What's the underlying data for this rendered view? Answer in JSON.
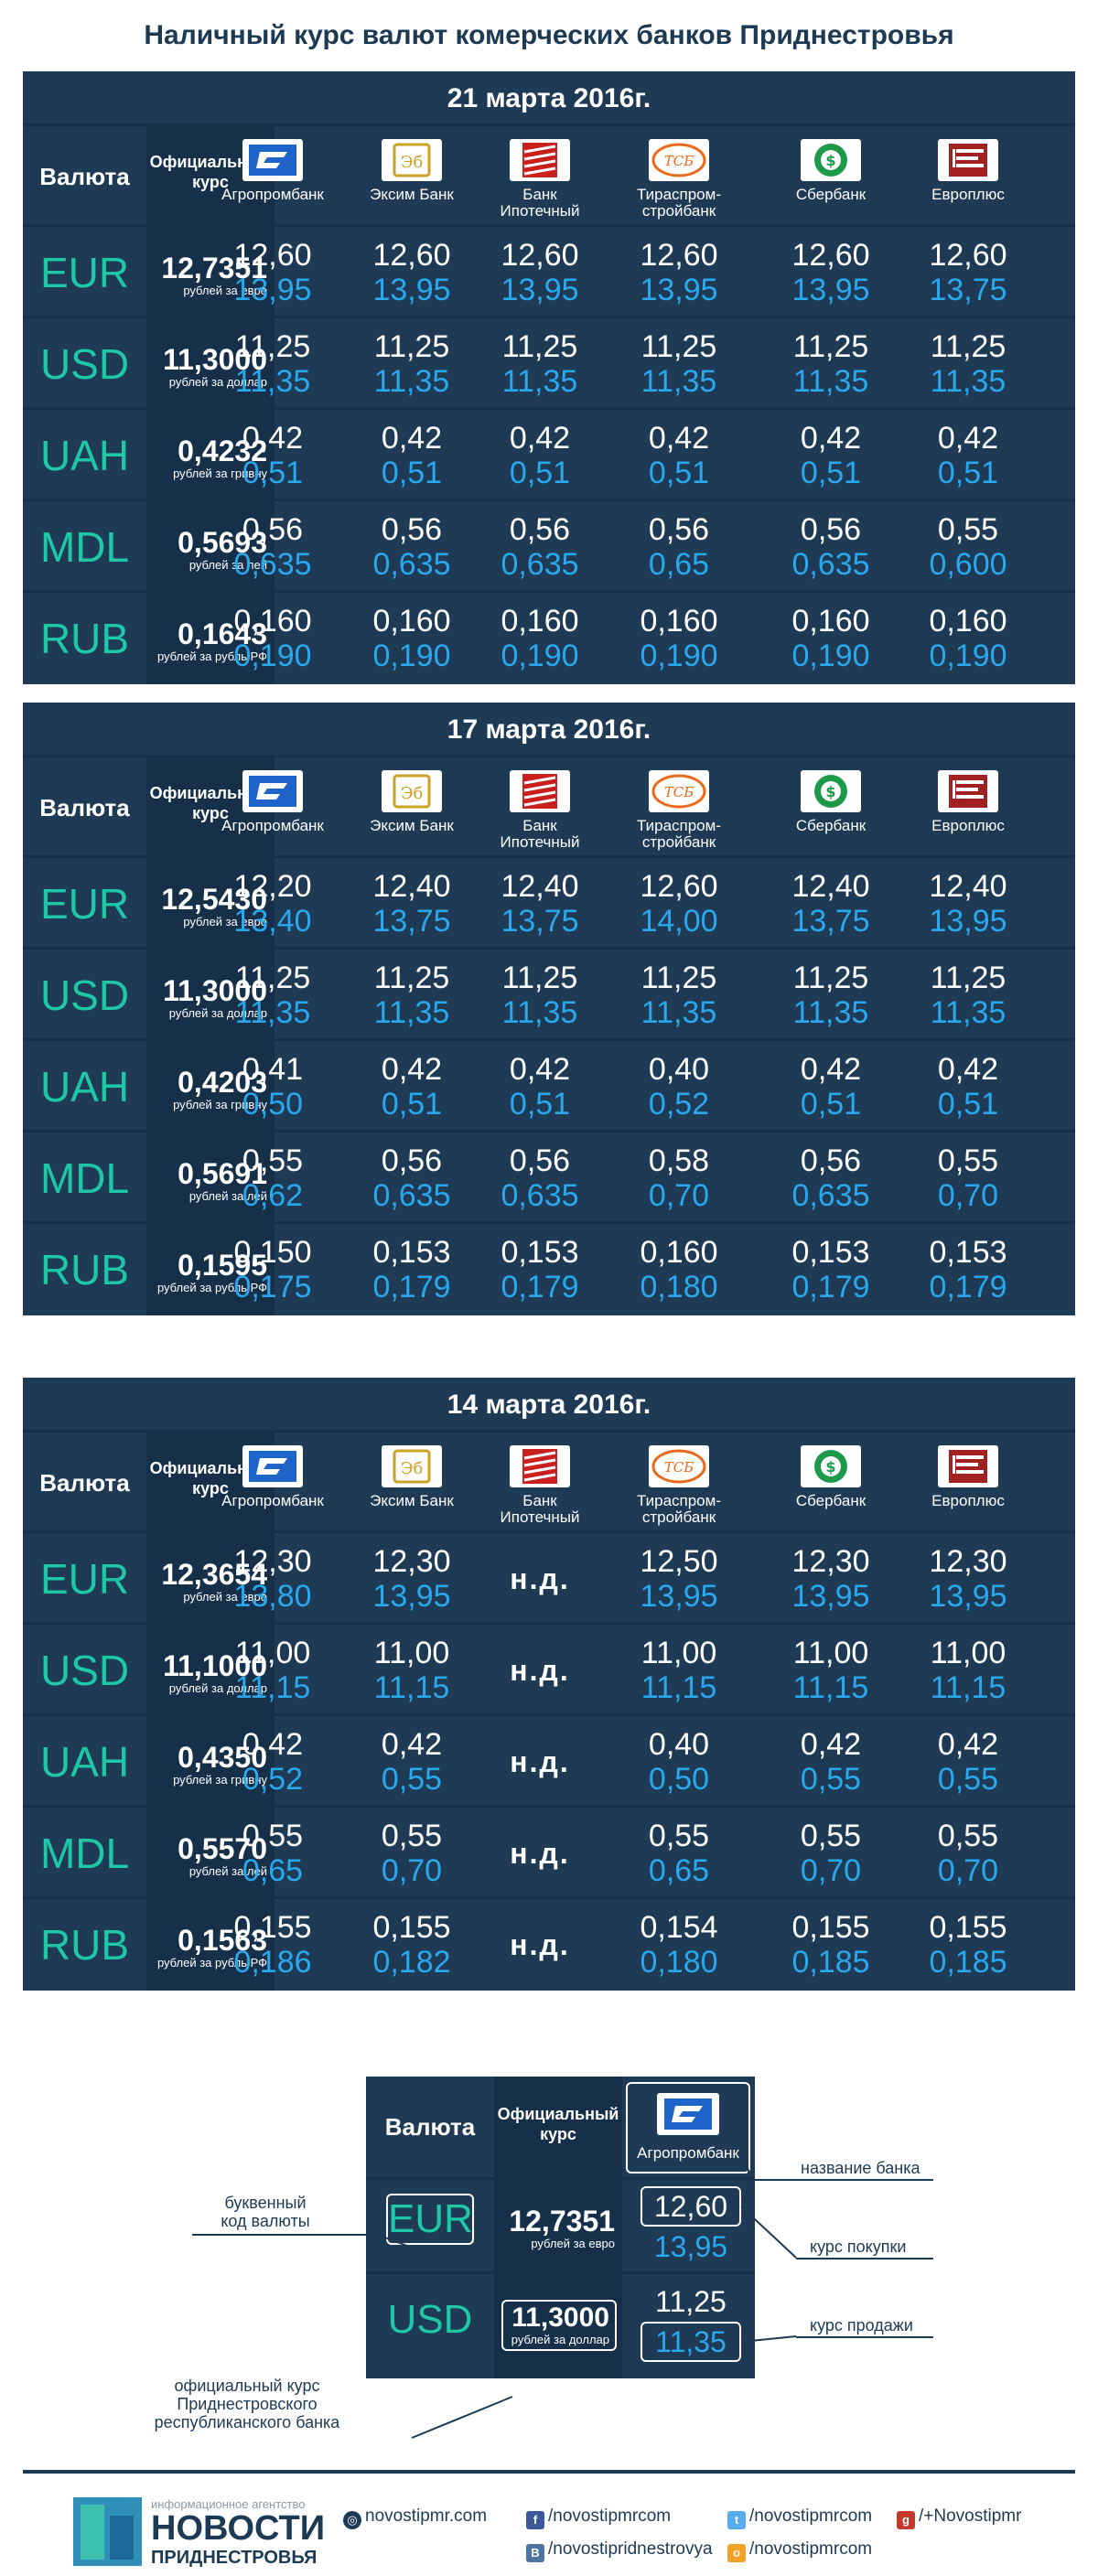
{
  "title": "Наличный курс валют комерческих банков Приднестровья",
  "header": {
    "valuta": "Валюта",
    "official_line1": "Официальный",
    "official_line2": "курс",
    "banks": [
      {
        "name1": "Агропромбанк",
        "name2": "",
        "logo": "agroprombank-logo"
      },
      {
        "name1": "Эксим Банк",
        "name2": "",
        "logo": "eximbank-logo"
      },
      {
        "name1": "Банк",
        "name2": "Ипотечный",
        "logo": "ipotechny-logo"
      },
      {
        "name1": "Тираспром-",
        "name2": "стройбанк",
        "logo": "tirasprom-logo"
      },
      {
        "name1": "Сбербанк",
        "name2": "",
        "logo": "sberbank-logo"
      },
      {
        "name1": "Европлюс",
        "name2": "",
        "logo": "evroplus-logo"
      }
    ]
  },
  "units": {
    "EUR": "рублей за евро",
    "USD": "рублей за доллар",
    "UAH": "рублей за гривну",
    "MDL": "рублей за лей",
    "RUB": "рублей за рубль РФ"
  },
  "blocks": [
    {
      "date": "21 марта 2016г.",
      "rows": [
        {
          "code": "EUR",
          "official": "12,7351",
          "buy": [
            "12,60",
            "12,60",
            "12,60",
            "12,60",
            "12,60",
            "12,60"
          ],
          "sell": [
            "13,95",
            "13,95",
            "13,95",
            "13,95",
            "13,95",
            "13,75"
          ]
        },
        {
          "code": "USD",
          "official": "11,3000",
          "buy": [
            "11,25",
            "11,25",
            "11,25",
            "11,25",
            "11,25",
            "11,25"
          ],
          "sell": [
            "11,35",
            "11,35",
            "11,35",
            "11,35",
            "11,35",
            "11,35"
          ]
        },
        {
          "code": "UAH",
          "official": "0,4232",
          "buy": [
            "0,42",
            "0,42",
            "0,42",
            "0,42",
            "0,42",
            "0,42"
          ],
          "sell": [
            "0,51",
            "0,51",
            "0,51",
            "0,51",
            "0,51",
            "0,51"
          ]
        },
        {
          "code": "MDL",
          "official": "0,5693",
          "buy": [
            "0,56",
            "0,56",
            "0,56",
            "0,56",
            "0,56",
            "0,55"
          ],
          "sell": [
            "0,635",
            "0,635",
            "0,635",
            "0,65",
            "0,635",
            "0,600"
          ]
        },
        {
          "code": "RUB",
          "official": "0,1643",
          "buy": [
            "0,160",
            "0,160",
            "0,160",
            "0,160",
            "0,160",
            "0,160"
          ],
          "sell": [
            "0,190",
            "0,190",
            "0,190",
            "0,190",
            "0,190",
            "0,190"
          ]
        }
      ]
    },
    {
      "date": "17 марта 2016г.",
      "rows": [
        {
          "code": "EUR",
          "official": "12,5430",
          "buy": [
            "12,20",
            "12,40",
            "12,40",
            "12,60",
            "12,40",
            "12,40"
          ],
          "sell": [
            "13,40",
            "13,75",
            "13,75",
            "14,00",
            "13,75",
            "13,95"
          ]
        },
        {
          "code": "USD",
          "official": "11,3000",
          "buy": [
            "11,25",
            "11,25",
            "11,25",
            "11,25",
            "11,25",
            "11,25"
          ],
          "sell": [
            "11,35",
            "11,35",
            "11,35",
            "11,35",
            "11,35",
            "11,35"
          ]
        },
        {
          "code": "UAH",
          "official": "0,4203",
          "buy": [
            "0,41",
            "0,42",
            "0,42",
            "0,40",
            "0,42",
            "0,42"
          ],
          "sell": [
            "0,50",
            "0,51",
            "0,51",
            "0,52",
            "0,51",
            "0,51"
          ]
        },
        {
          "code": "MDL",
          "official": "0,5691",
          "buy": [
            "0,55",
            "0,56",
            "0,56",
            "0,58",
            "0,56",
            "0,55"
          ],
          "sell": [
            "0,62",
            "0,635",
            "0,635",
            "0,70",
            "0,635",
            "0,70"
          ]
        },
        {
          "code": "RUB",
          "official": "0,1595",
          "buy": [
            "0,150",
            "0,153",
            "0,153",
            "0,160",
            "0,153",
            "0,153"
          ],
          "sell": [
            "0,175",
            "0,179",
            "0,179",
            "0,180",
            "0,179",
            "0,179"
          ]
        }
      ]
    },
    {
      "date": "14 марта 2016г.",
      "rows": [
        {
          "code": "EUR",
          "official": "12,3654",
          "buy": [
            "12,30",
            "12,30",
            "",
            "12,50",
            "12,30",
            "12,30"
          ],
          "sell": [
            "13,80",
            "13,95",
            "",
            "13,95",
            "13,95",
            "13,95"
          ]
        },
        {
          "code": "USD",
          "official": "11,1000",
          "buy": [
            "11,00",
            "11,00",
            "",
            "11,00",
            "11,00",
            "11,00"
          ],
          "sell": [
            "11,15",
            "11,15",
            "",
            "11,15",
            "11,15",
            "11,15"
          ]
        },
        {
          "code": "UAH",
          "official": "0,4350",
          "buy": [
            "0,42",
            "0,42",
            "",
            "0,40",
            "0,42",
            "0,42"
          ],
          "sell": [
            "0,52",
            "0,55",
            "",
            "0,50",
            "0,55",
            "0,55"
          ]
        },
        {
          "code": "MDL",
          "official": "0,5570",
          "buy": [
            "0,55",
            "0,55",
            "",
            "0,55",
            "0,55",
            "0,55"
          ],
          "sell": [
            "0,65",
            "0,70",
            "",
            "0,65",
            "0,70",
            "0,70"
          ]
        },
        {
          "code": "RUB",
          "official": "0,1563",
          "buy": [
            "0,155",
            "0,155",
            "",
            "0,154",
            "0,155",
            "0,155"
          ],
          "sell": [
            "0,186",
            "0,182",
            "",
            "0,180",
            "0,185",
            "0,185"
          ]
        }
      ]
    }
  ],
  "nd_label": "н.д.",
  "legend": {
    "valuta": "Валюта",
    "official_line1": "Официальный",
    "official_line2": "курс",
    "bank": "Агропромбанк",
    "eur_code": "EUR",
    "eur_official": "12,7351",
    "eur_unit": "рублей за евро",
    "eur_buy": "12,60",
    "eur_sell": "13,95",
    "usd_code": "USD",
    "usd_official": "11,3000",
    "usd_unit": "рублей за доллар",
    "usd_buy": "11,25",
    "usd_sell": "11,35",
    "lbl_bank_name": "название банка",
    "lbl_code_1": "буквенный",
    "lbl_code_2": "код валюты",
    "lbl_buy": "курс покупки",
    "lbl_sell": "курс продажи",
    "lbl_off_1": "официальный курс",
    "lbl_off_2": "Приднестровского",
    "lbl_off_3": "республиканского банка"
  },
  "footer": {
    "brand_small": "информационное агентство",
    "brand_big": "НОВОСТИ",
    "brand_sub": "ПРИДНЕСТРОВЬЯ",
    "site": "novostipmr.com",
    "fb": "/novostipmrcom",
    "vk": "/novostipridnestrovya",
    "tw": "/novostipmrcom",
    "ok": "/novostipmrcom",
    "gp": "/+Novostipmr"
  },
  "colors": {
    "panel": "#1f3a55",
    "panel_dark": "#17304a",
    "code": "#1ec7a6",
    "sell": "#29a8ee"
  }
}
